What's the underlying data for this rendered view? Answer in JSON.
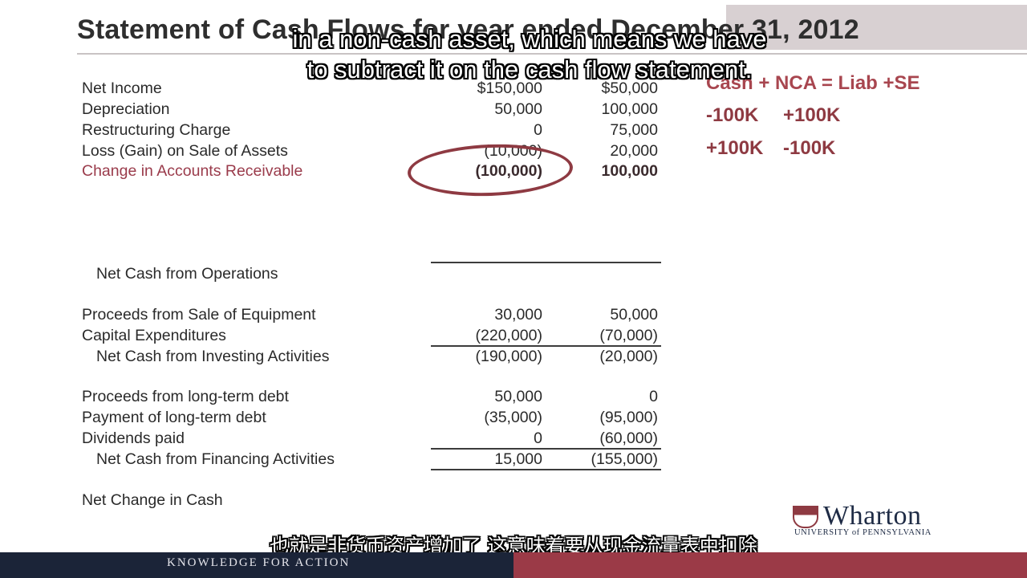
{
  "slide": {
    "title": "Statement of Cash Flows for year ended December 31, 2012"
  },
  "statement": {
    "rows": [
      {
        "label": "Net Income",
        "col1": "$150,000",
        "col2": "$50,000"
      },
      {
        "label": "Depreciation",
        "col1": "50,000",
        "col2": "100,000"
      },
      {
        "label": "Restructuring Charge",
        "col1": "0",
        "col2": "75,000"
      },
      {
        "label": "Loss (Gain) on Sale of Assets",
        "col1": "(10,000)",
        "col2": "20,000"
      },
      {
        "label": "Change in Accounts Receivable",
        "col1": "(100,000)",
        "col2": "100,000"
      },
      {
        "label": "Net Cash from Operations",
        "col1": "",
        "col2": ""
      },
      {
        "label": "Proceeds from Sale of Equipment",
        "col1": "30,000",
        "col2": "50,000"
      },
      {
        "label": "Capital Expenditures",
        "col1": "(220,000)",
        "col2": "(70,000)"
      },
      {
        "label": "Net Cash from Investing Activities",
        "col1": "(190,000)",
        "col2": "(20,000)"
      },
      {
        "label": "Proceeds from long-term debt",
        "col1": "50,000",
        "col2": "0"
      },
      {
        "label": "Payment of long-term debt",
        "col1": "(35,000)",
        "col2": "(95,000)"
      },
      {
        "label": "Dividends paid",
        "col1": "0",
        "col2": "(60,000)"
      },
      {
        "label": "Net Cash from Financing Activities",
        "col1": "15,000",
        "col2": "(155,000)"
      },
      {
        "label": "Net Change in Cash",
        "col1": "",
        "col2": ""
      }
    ]
  },
  "equation": {
    "header": "Cash + NCA = Liab +SE",
    "line1_a": "-100K",
    "line1_b": "+100K",
    "line2_a": "+100K",
    "line2_b": "-100K"
  },
  "subtitles": {
    "en_line1": "in a non-cash asset, which means we have",
    "en_line2": "to subtract it on the cash flow statement.",
    "zh": "也就是非货币资产增加了 这意味着要从现金流量表中扣除"
  },
  "logo": {
    "name": "Wharton",
    "sub": "UNIVERSITY of PENNSYLVANIA"
  },
  "footer": {
    "tagline": "KNOWLEDGE FOR ACTION"
  },
  "colors": {
    "accent_red": "#9b3a47",
    "navy": "#1b2438",
    "highlight_text": "#9a3b4b"
  }
}
